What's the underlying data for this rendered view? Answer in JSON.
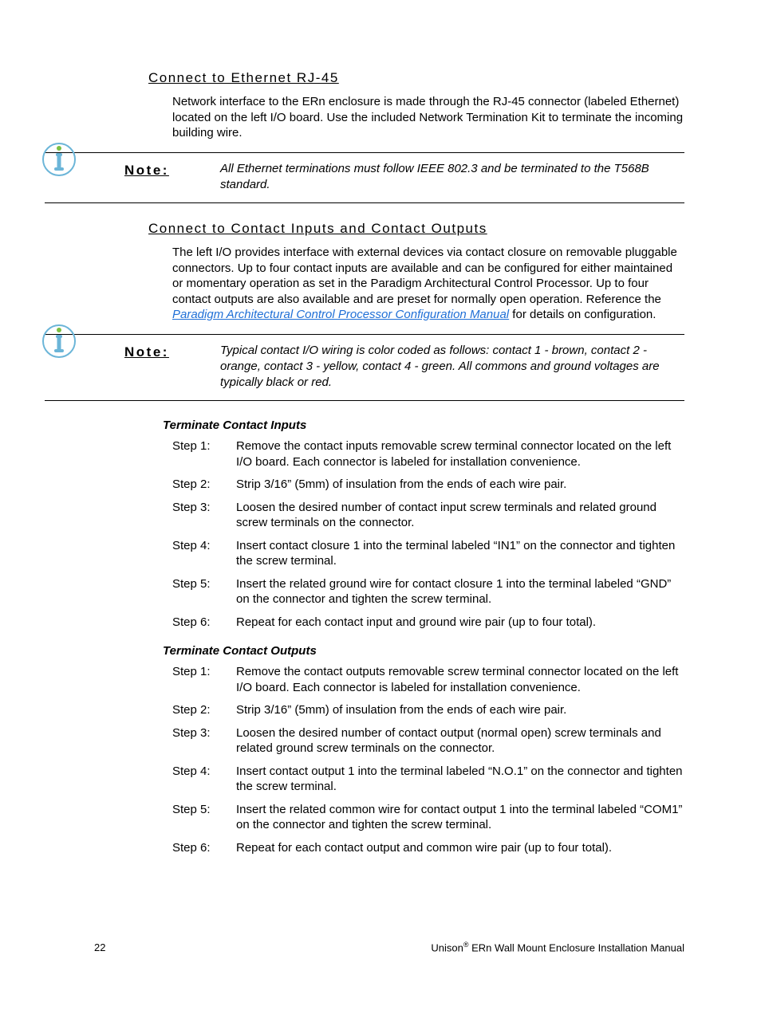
{
  "section1": {
    "heading": "Connect to Ethernet RJ-45",
    "body": "Network interface to the ERn enclosure is made through the RJ-45 connector (labeled Ethernet) located on the left I/O board. Use the included Network Termination Kit to terminate the incoming building wire."
  },
  "note1": {
    "label": "Note:",
    "text": "All Ethernet terminations must follow IEEE 802.3 and be terminated to the T568B standard."
  },
  "section2": {
    "heading": "Connect to Contact Inputs and Contact Outputs",
    "body_before_link": "The left I/O provides interface with external devices via contact closure on removable pluggable connectors. Up to four contact inputs are available and can be configured for either maintained or momentary operation as set in the Paradigm Architectural Control Processor. Up to four contact outputs are also available and are preset for normally open operation. Reference the ",
    "link_text": "Paradigm Architectural Control Processor Configuration Manual",
    "body_after_link": " for details on configuration."
  },
  "note2": {
    "label": "Note:",
    "text": "Typical contact I/O wiring is color coded as follows: contact 1 - brown, contact 2 - orange, contact 3 - yellow, contact 4 - green. All commons and ground voltages are typically black or red."
  },
  "inputs_heading": "Terminate Contact Inputs",
  "inputs_steps": [
    {
      "label": "Step 1:",
      "text": "Remove the contact inputs removable screw terminal connector located on the left I/O board. Each connector is labeled for installation convenience."
    },
    {
      "label": "Step 2:",
      "text": "Strip 3/16” (5mm) of insulation from the ends of each wire pair."
    },
    {
      "label": "Step 3:",
      "text": "Loosen the desired number of contact input screw terminals and related ground screw terminals on the connector."
    },
    {
      "label": "Step 4:",
      "text": "Insert contact closure 1 into the terminal labeled “IN1” on the connector and tighten the screw terminal."
    },
    {
      "label": "Step 5:",
      "text": "Insert the related ground wire for contact closure 1 into the terminal labeled “GND” on the connector and tighten the screw terminal."
    },
    {
      "label": "Step 6:",
      "text": "Repeat for each contact input and ground wire pair (up to four total)."
    }
  ],
  "outputs_heading": "Terminate Contact Outputs",
  "outputs_steps": [
    {
      "label": "Step 1:",
      "text": "Remove the contact outputs removable screw terminal connector located on the left I/O board. Each connector is labeled for installation convenience."
    },
    {
      "label": "Step 2:",
      "text": "Strip 3/16” (5mm) of insulation from the ends of each wire pair."
    },
    {
      "label": "Step 3:",
      "text": "Loosen the desired number of contact output (normal open) screw terminals and related ground screw terminals on the connector."
    },
    {
      "label": "Step 4:",
      "text": "Insert contact output 1 into the terminal labeled “N.O.1” on the connector and tighten the screw terminal."
    },
    {
      "label": "Step 5:",
      "text": "Insert the related common wire for contact output 1 into the terminal labeled “COM1” on the connector and tighten the screw terminal."
    },
    {
      "label": "Step 6:",
      "text": "Repeat for each contact output and common wire pair (up to four total)."
    }
  ],
  "footer": {
    "page_number": "22",
    "product_prefix": "Unison",
    "reg_mark": "®",
    "product_suffix": " ERn Wall Mount Enclosure Installation Manual"
  },
  "icon_colors": {
    "circle_stroke": "#6bb5d8",
    "i_fill": "#6bb5d8",
    "dot_fill": "#7bc043"
  }
}
